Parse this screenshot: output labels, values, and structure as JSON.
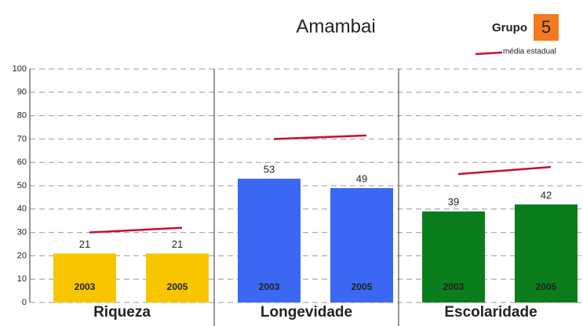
{
  "chart_data": {
    "type": "bar",
    "title": "Amambai",
    "group_label": "Grupo",
    "group_number": 5,
    "categories": [
      "Riqueza",
      "Longevidade",
      "Escolaridade"
    ],
    "colors": [
      "#f7c600",
      "#3b68f2",
      "#0b7d1c"
    ],
    "series": [
      {
        "name": "2003",
        "values": [
          21,
          53,
          39
        ]
      },
      {
        "name": "2005",
        "values": [
          21,
          49,
          42
        ]
      }
    ],
    "average": {
      "name": "média estadual",
      "color": "#c8102e",
      "values": [
        [
          30,
          32
        ],
        [
          70,
          71.5
        ],
        [
          55,
          58
        ]
      ]
    },
    "ylim": [
      0,
      100
    ],
    "yticks": [
      0,
      10,
      20,
      30,
      40,
      50,
      60,
      70,
      80,
      90,
      100
    ],
    "grid": true
  }
}
